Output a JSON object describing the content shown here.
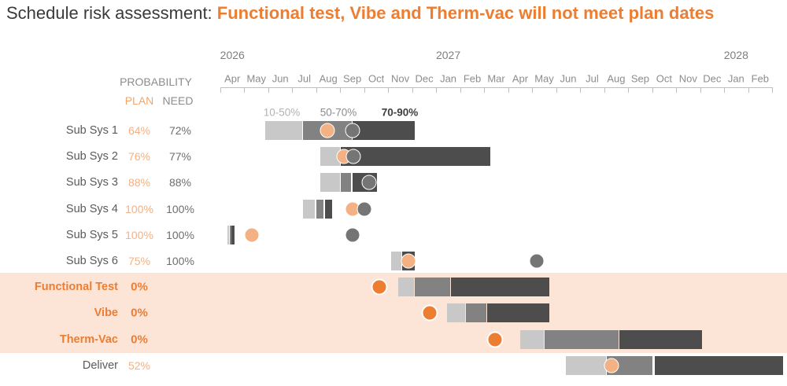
{
  "title": {
    "prefix": "Schedule risk assessment: ",
    "highlight": "Functional test, Vibe and Therm-vac will not meet plan dates"
  },
  "header": {
    "probability": "PROBABILITY",
    "plan": "PLAN",
    "need": "NEED"
  },
  "colors": {
    "accent_orange": "#ED7D31",
    "plan_orange_light": "#F4B183",
    "band_10_50": "#C8C8C8",
    "band_50_70": "#828282",
    "band_70_90": "#4D4D4D",
    "need_dot_gray": "#757575",
    "highlight_bg": "#FCE4D6",
    "axis_gray": "#BFBFBF"
  },
  "chart_data": {
    "type": "gantt",
    "title": "Schedule risk assessment: Functional test, Vibe and Therm-vac will not meet plan dates",
    "timeline": {
      "month_offset_zero": "2026-04",
      "months": [
        "Apr",
        "May",
        "Jun",
        "Jul",
        "Aug",
        "Sep",
        "Oct",
        "Nov",
        "Dec",
        "Jan",
        "Feb",
        "Mar",
        "Apr",
        "May",
        "Jun",
        "Jul",
        "Aug",
        "Sep",
        "Oct",
        "Nov",
        "Dec",
        "Jan",
        "Feb"
      ],
      "years": [
        {
          "label": "2026",
          "month_index": 0
        },
        {
          "label": "2027",
          "month_index": 9
        },
        {
          "label": "2028",
          "month_index": 21
        }
      ]
    },
    "legend": [
      {
        "label": "10-50%",
        "color": "#B3B3B3"
      },
      {
        "label": "50-70%",
        "color": "#8C8C8C"
      },
      {
        "label": "70-90%",
        "color": "#3F3F3F"
      }
    ],
    "rows": [
      {
        "label": "Sub Sys 1",
        "plan": "64%",
        "need": "72%",
        "highlight": false,
        "segments": [
          {
            "band": "10-50%",
            "start_m": 1.87,
            "end_m": 3.44
          },
          {
            "band": "50-70%",
            "start_m": 3.44,
            "end_m": 5.51
          },
          {
            "band": "70-90%",
            "start_m": 5.51,
            "end_m": 8.1
          }
        ],
        "plan_dot_m": 4.46,
        "need_dot_m": 5.51
      },
      {
        "label": "Sub Sys 2",
        "plan": "76%",
        "need": "77%",
        "highlight": false,
        "segments": [
          {
            "band": "10-50%",
            "start_m": 4.17,
            "end_m": 5.02
          },
          {
            "band": "70-90%",
            "start_m": 5.02,
            "end_m": 11.25
          }
        ],
        "plan_dot_m": 5.15,
        "need_dot_m": 5.54
      },
      {
        "label": "Sub Sys 3",
        "plan": "88%",
        "need": "88%",
        "highlight": false,
        "segments": [
          {
            "band": "10-50%",
            "start_m": 4.17,
            "end_m": 5.02
          },
          {
            "band": "50-70%",
            "start_m": 5.02,
            "end_m": 5.48
          },
          {
            "band": "70-90%",
            "start_m": 5.51,
            "end_m": 6.53
          }
        ],
        "plan_dot_m": null,
        "need_dot_m": 6.2
      },
      {
        "label": "Sub Sys 4",
        "plan": "100%",
        "need": "100%",
        "highlight": false,
        "segments": [
          {
            "band": "10-50%",
            "start_m": 3.44,
            "end_m": 3.97
          },
          {
            "band": "50-70%",
            "start_m": 4.0,
            "end_m": 4.33
          },
          {
            "band": "70-90%",
            "start_m": 4.36,
            "end_m": 4.66
          }
        ],
        "plan_dot_m": 5.51,
        "need_dot_m": 6.0
      },
      {
        "label": "Sub Sys 5",
        "plan": "100%",
        "need": "100%",
        "highlight": false,
        "segments": [
          {
            "band": "10-50%",
            "start_m": 0.3,
            "end_m": 0.39
          },
          {
            "band": "50-70%",
            "start_m": 0.39,
            "end_m": 0.46
          },
          {
            "band": "70-90%",
            "start_m": 0.46,
            "end_m": 0.59
          }
        ],
        "plan_dot_m": 1.31,
        "need_dot_m": 5.51
      },
      {
        "label": "Sub Sys 6",
        "plan": "75%",
        "need": "100%",
        "highlight": false,
        "segments": [
          {
            "band": "10-50%",
            "start_m": 7.12,
            "end_m": 7.58
          },
          {
            "band": "70-90%",
            "start_m": 7.58,
            "end_m": 8.1
          }
        ],
        "plan_dot_m": 7.84,
        "need_dot_m": 13.19
      },
      {
        "label": "Functional Test",
        "plan": "0%",
        "need": null,
        "highlight": true,
        "segments": [
          {
            "band": "10-50%",
            "start_m": 7.41,
            "end_m": 8.1
          },
          {
            "band": "50-70%",
            "start_m": 8.1,
            "end_m": 9.61
          },
          {
            "band": "70-90%",
            "start_m": 9.61,
            "end_m": 13.71
          }
        ],
        "plan_dot_m": 6.63,
        "need_dot_m": null
      },
      {
        "label": "Vibe",
        "plan": "0%",
        "need": null,
        "highlight": true,
        "segments": [
          {
            "band": "10-50%",
            "start_m": 9.45,
            "end_m": 10.24
          },
          {
            "band": "50-70%",
            "start_m": 10.24,
            "end_m": 11.12
          },
          {
            "band": "70-90%",
            "start_m": 11.12,
            "end_m": 13.71
          }
        ],
        "plan_dot_m": 8.73,
        "need_dot_m": null
      },
      {
        "label": "Therm-Vac",
        "plan": "0%",
        "need": null,
        "highlight": true,
        "segments": [
          {
            "band": "10-50%",
            "start_m": 12.5,
            "end_m": 13.52
          },
          {
            "band": "50-70%",
            "start_m": 13.52,
            "end_m": 16.63
          },
          {
            "band": "70-90%",
            "start_m": 16.63,
            "end_m": 20.08
          }
        ],
        "plan_dot_m": 11.45,
        "need_dot_m": null
      },
      {
        "label": "Deliver",
        "plan": "52%",
        "need": null,
        "highlight": false,
        "segments": [
          {
            "band": "10-50%",
            "start_m": 14.4,
            "end_m": 16.11
          },
          {
            "band": "50-70%",
            "start_m": 16.11,
            "end_m": 18.04
          },
          {
            "band": "70-90%",
            "start_m": 18.11,
            "end_m": 23.46
          }
        ],
        "plan_dot_m": 16.3,
        "need_dot_m": null
      }
    ]
  }
}
